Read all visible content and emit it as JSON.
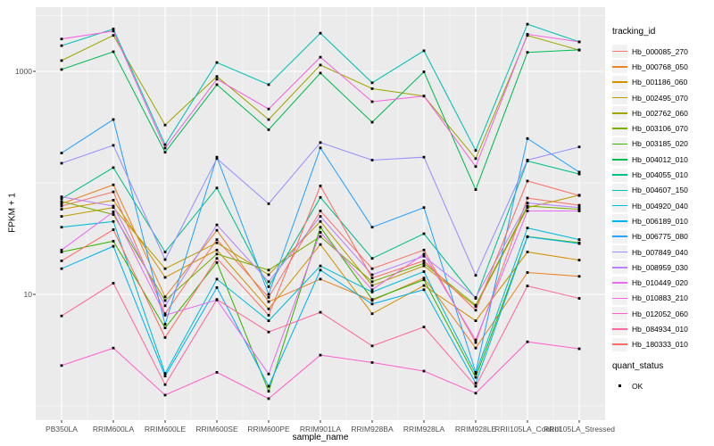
{
  "figure": {
    "panel_bg": "#EBEBEB",
    "grid_color": "#FFFFFF",
    "axis_text_color": "#4D4D4D",
    "tick_color": "#333333",
    "point_color": "#000000",
    "legend_key_bg": "#F2F2F2"
  },
  "legend": {
    "tracking_title": "tracking_id",
    "quant_title": "quant_status",
    "quant_items": [
      {
        "label": "OK"
      }
    ]
  },
  "chart_data": {
    "type": "line",
    "title": "",
    "xlabel": "sample_name",
    "ylabel": "FPKM + 1",
    "y_scale": "log10",
    "ylim": [
      0.76,
      3767
    ],
    "grid": true,
    "legend_position": "right",
    "y_ticks": [
      {
        "label": "1000",
        "value": 1000
      },
      {
        "label": "10",
        "value": 10
      }
    ],
    "y_major_gridlines": [
      1000,
      10
    ],
    "y_minor_gridlines": [
      3162,
      100,
      1
    ],
    "categories": [
      "PB350LA",
      "RRIM600LA",
      "RRIM600LE",
      "RRIM600SE",
      "RRIM600PE",
      "RRIM901LA",
      "RRIM928BA",
      "RRIM928LA",
      "RRIM928LE",
      "RRII105LA_Control",
      "RRII105LA_Stressed"
    ],
    "series": [
      {
        "name": "Hb_000085_270",
        "color": "#F8766D",
        "values": [
          62,
          83,
          6.7,
          31,
          9.4,
          56,
          17,
          25,
          3.7,
          73,
          63
        ]
      },
      {
        "name": "Hb_000768_050",
        "color": "#E88526",
        "values": [
          65,
          96,
          9.5,
          37.5,
          8.6,
          13.7,
          8.8,
          14,
          3.3,
          15.7,
          14.5
        ]
      },
      {
        "name": "Hb_001186_060",
        "color": "#D39200",
        "values": [
          58,
          70,
          14.2,
          25,
          7.4,
          28,
          6.7,
          12,
          5.8,
          24,
          20.3
        ]
      },
      {
        "name": "Hb_002495_070",
        "color": "#BC9D00",
        "values": [
          50,
          60,
          17,
          29,
          15,
          45,
          12,
          18,
          7.8,
          60,
          77.5
        ]
      },
      {
        "name": "Hb_002762_060",
        "color": "#9FA600",
        "values": [
          1250,
          2100,
          330,
          900,
          370,
          1140,
          700,
          600,
          165,
          2100,
          1550
        ]
      },
      {
        "name": "Hb_003106_070",
        "color": "#7CAE00",
        "values": [
          68,
          52,
          8.8,
          23,
          16.5,
          33,
          13,
          19,
          8.0,
          62,
          58
        ]
      },
      {
        "name": "Hb_003185_020",
        "color": "#39B600",
        "values": [
          24,
          30,
          5.0,
          19.3,
          1.35,
          40,
          9.0,
          13.5,
          1.8,
          33,
          29
        ]
      },
      {
        "name": "Hb_004012_010",
        "color": "#00BC51",
        "values": [
          1040,
          1500,
          188,
          760,
          300,
          965,
          350,
          990,
          87,
          1480,
          1560
        ]
      },
      {
        "name": "Hb_004055_010",
        "color": "#00C08B",
        "values": [
          72,
          137,
          24,
          90,
          11.7,
          74,
          21,
          35,
          9.2,
          157,
          120
        ]
      },
      {
        "name": "Hb_004607_150",
        "color": "#00C1B2",
        "values": [
          1700,
          2400,
          220,
          1200,
          760,
          2200,
          790,
          1530,
          195,
          2650,
          1840
        ]
      },
      {
        "name": "Hb_004920_040",
        "color": "#00BDD8",
        "values": [
          40,
          45,
          1.95,
          13.7,
          5.8,
          18,
          10.5,
          16,
          1.94,
          39.4,
          31
        ]
      },
      {
        "name": "Hb_006189_010",
        "color": "#00B3F2",
        "values": [
          17,
          27,
          1.85,
          11.5,
          1.5,
          16.5,
          8.2,
          11,
          1.6,
          32.8,
          28.5
        ]
      },
      {
        "name": "Hb_006775_080",
        "color": "#29A3FF",
        "values": [
          185,
          370,
          5.4,
          170,
          10,
          206,
          40,
          60,
          2.0,
          250,
          125
        ]
      },
      {
        "name": "Hb_007849_040",
        "color": "#9590FF",
        "values": [
          150,
          217,
          20.5,
          165,
          65,
          230,
          160,
          170,
          14.8,
          160,
          210
        ]
      },
      {
        "name": "Hb_008959_030",
        "color": "#B983FF",
        "values": [
          75,
          62,
          7.9,
          42,
          13,
          50,
          15,
          22,
          9.4,
          66,
          60
        ]
      },
      {
        "name": "Hb_010449_020",
        "color": "#E76BF3",
        "values": [
          25,
          55,
          6.5,
          8.9,
          1.93,
          36,
          11,
          23,
          3.9,
          56,
          56
        ]
      },
      {
        "name": "Hb_010883_210",
        "color": "#F763E0",
        "values": [
          1950,
          2300,
          205,
          850,
          460,
          1340,
          535,
          600,
          140,
          2150,
          1840
        ]
      },
      {
        "name": "Hb_012052_060",
        "color": "#FF61C9",
        "values": [
          2.3,
          3.3,
          1.25,
          2.0,
          1.16,
          2.85,
          2.45,
          2.05,
          1.3,
          3.75,
          3.25
        ]
      },
      {
        "name": "Hb_084934_010",
        "color": "#FF689E",
        "values": [
          6.4,
          12.6,
          1.55,
          9.0,
          4.6,
          6.9,
          3.45,
          5.1,
          1.5,
          11.9,
          9.2
        ]
      },
      {
        "name": "Hb_180333_010",
        "color": "#FF6C67",
        "values": [
          20,
          38,
          4.1,
          21,
          6.5,
          94,
          14,
          20,
          7.2,
          104,
          77
        ]
      }
    ]
  }
}
